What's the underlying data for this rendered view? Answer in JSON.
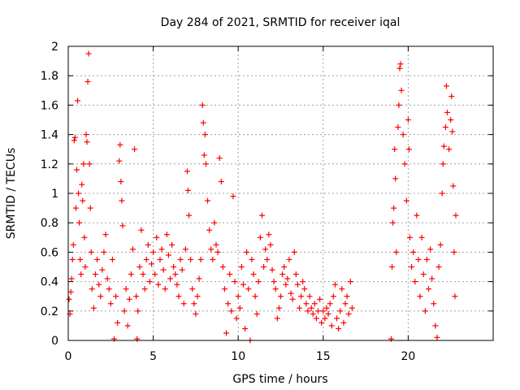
{
  "chart_data": {
    "type": "scatter",
    "title": "Day 284 of 2021, SRMTID for receiver iqal",
    "xlabel": "GPS time / hours",
    "ylabel": "SRMTID / TECUs",
    "xlim": [
      0,
      25
    ],
    "ylim": [
      0,
      2
    ],
    "x_ticks": [
      0,
      5,
      10,
      15,
      20
    ],
    "y_ticks": [
      0,
      0.2,
      0.4,
      0.6,
      0.8,
      1,
      1.2,
      1.4,
      1.6,
      1.8,
      2
    ],
    "x_tick_labels": [
      "0",
      "5",
      "10",
      "15",
      "20"
    ],
    "y_tick_labels": [
      "0",
      "0.2",
      "0.4",
      "0.6",
      "0.8",
      "1",
      "1.2",
      "1.4",
      "1.6",
      "1.8",
      "2"
    ],
    "grid": true,
    "marker": "+",
    "color": "#ff0000",
    "series": [
      {
        "name": "SRMTID",
        "points": [
          [
            0.05,
            0.28
          ],
          [
            0.1,
            0.18
          ],
          [
            0.15,
            0.33
          ],
          [
            0.2,
            0.42
          ],
          [
            0.25,
            0.55
          ],
          [
            0.3,
            0.65
          ],
          [
            0.35,
            1.36
          ],
          [
            0.4,
            1.38
          ],
          [
            0.45,
            0.9
          ],
          [
            0.5,
            1.16
          ],
          [
            0.55,
            1.63
          ],
          [
            0.6,
            1.0
          ],
          [
            0.65,
            0.8
          ],
          [
            0.7,
            0.55
          ],
          [
            0.75,
            0.45
          ],
          [
            0.8,
            1.06
          ],
          [
            0.85,
            0.95
          ],
          [
            0.9,
            1.2
          ],
          [
            0.95,
            0.7
          ],
          [
            1.0,
            0.5
          ],
          [
            1.05,
            1.4
          ],
          [
            1.1,
            1.35
          ],
          [
            1.15,
            1.76
          ],
          [
            1.2,
            1.95
          ],
          [
            1.25,
            1.2
          ],
          [
            1.3,
            0.9
          ],
          [
            1.35,
            0.6
          ],
          [
            1.4,
            0.35
          ],
          [
            1.5,
            0.22
          ],
          [
            1.6,
            0.45
          ],
          [
            1.7,
            0.55
          ],
          [
            1.8,
            0.38
          ],
          [
            1.9,
            0.3
          ],
          [
            2.0,
            0.48
          ],
          [
            2.1,
            0.6
          ],
          [
            2.2,
            0.72
          ],
          [
            2.3,
            0.42
          ],
          [
            2.4,
            0.35
          ],
          [
            2.5,
            0.25
          ],
          [
            2.6,
            0.55
          ],
          [
            2.7,
            0.01
          ],
          [
            2.8,
            0.3
          ],
          [
            2.9,
            0.12
          ],
          [
            3.0,
            1.22
          ],
          [
            3.05,
            1.33
          ],
          [
            3.1,
            1.08
          ],
          [
            3.15,
            0.95
          ],
          [
            3.2,
            0.78
          ],
          [
            3.3,
            0.2
          ],
          [
            3.4,
            0.35
          ],
          [
            3.5,
            0.1
          ],
          [
            3.6,
            0.28
          ],
          [
            3.7,
            0.45
          ],
          [
            3.8,
            0.62
          ],
          [
            3.9,
            1.3
          ],
          [
            4.0,
            0.3
          ],
          [
            4.05,
            0.01
          ],
          [
            4.1,
            0.2
          ],
          [
            4.2,
            0.5
          ],
          [
            4.3,
            0.75
          ],
          [
            4.4,
            0.45
          ],
          [
            4.5,
            0.35
          ],
          [
            4.6,
            0.55
          ],
          [
            4.7,
            0.65
          ],
          [
            4.8,
            0.4
          ],
          [
            4.9,
            0.52
          ],
          [
            5.0,
            0.6
          ],
          [
            5.1,
            0.45
          ],
          [
            5.2,
            0.7
          ],
          [
            5.3,
            0.38
          ],
          [
            5.4,
            0.55
          ],
          [
            5.5,
            0.62
          ],
          [
            5.6,
            0.48
          ],
          [
            5.7,
            0.35
          ],
          [
            5.8,
            0.72
          ],
          [
            5.9,
            0.58
          ],
          [
            6.0,
            0.42
          ],
          [
            6.1,
            0.65
          ],
          [
            6.2,
            0.5
          ],
          [
            6.3,
            0.45
          ],
          [
            6.4,
            0.38
          ],
          [
            6.5,
            0.3
          ],
          [
            6.6,
            0.55
          ],
          [
            6.7,
            0.48
          ],
          [
            6.8,
            0.25
          ],
          [
            6.9,
            0.62
          ],
          [
            7.0,
            1.15
          ],
          [
            7.05,
            1.02
          ],
          [
            7.1,
            0.85
          ],
          [
            7.2,
            0.55
          ],
          [
            7.3,
            0.35
          ],
          [
            7.4,
            0.25
          ],
          [
            7.5,
            0.18
          ],
          [
            7.6,
            0.3
          ],
          [
            7.7,
            0.42
          ],
          [
            7.8,
            0.55
          ],
          [
            7.9,
            1.6
          ],
          [
            7.95,
            1.48
          ],
          [
            8.0,
            1.26
          ],
          [
            8.05,
            1.4
          ],
          [
            8.1,
            1.2
          ],
          [
            8.2,
            0.95
          ],
          [
            8.3,
            0.75
          ],
          [
            8.4,
            0.62
          ],
          [
            8.5,
            0.55
          ],
          [
            8.6,
            0.8
          ],
          [
            8.7,
            0.65
          ],
          [
            8.8,
            0.6
          ],
          [
            8.9,
            1.24
          ],
          [
            9.0,
            1.08
          ],
          [
            9.1,
            0.5
          ],
          [
            9.2,
            0.35
          ],
          [
            9.3,
            0.05
          ],
          [
            9.4,
            0.25
          ],
          [
            9.5,
            0.45
          ],
          [
            9.6,
            0.2
          ],
          [
            9.7,
            0.98
          ],
          [
            9.8,
            0.4
          ],
          [
            9.9,
            0.15
          ],
          [
            10.0,
            0.3
          ],
          [
            10.1,
            0.22
          ],
          [
            10.2,
            0.5
          ],
          [
            10.3,
            0.38
          ],
          [
            10.4,
            0.08
          ],
          [
            10.5,
            0.6
          ],
          [
            10.6,
            0.35
          ],
          [
            10.7,
            0.0
          ],
          [
            10.8,
            0.55
          ],
          [
            10.9,
            0.45
          ],
          [
            11.0,
            0.3
          ],
          [
            11.1,
            0.18
          ],
          [
            11.2,
            0.4
          ],
          [
            11.3,
            0.7
          ],
          [
            11.4,
            0.85
          ],
          [
            11.5,
            0.5
          ],
          [
            11.6,
            0.62
          ],
          [
            11.7,
            0.55
          ],
          [
            11.8,
            0.72
          ],
          [
            11.9,
            0.65
          ],
          [
            12.0,
            0.48
          ],
          [
            12.1,
            0.4
          ],
          [
            12.2,
            0.35
          ],
          [
            12.3,
            0.15
          ],
          [
            12.4,
            0.22
          ],
          [
            12.5,
            0.3
          ],
          [
            12.6,
            0.45
          ],
          [
            12.7,
            0.5
          ],
          [
            12.8,
            0.38
          ],
          [
            12.9,
            0.42
          ],
          [
            13.0,
            0.55
          ],
          [
            13.1,
            0.32
          ],
          [
            13.2,
            0.28
          ],
          [
            13.3,
            0.6
          ],
          [
            13.4,
            0.45
          ],
          [
            13.5,
            0.38
          ],
          [
            13.6,
            0.22
          ],
          [
            13.7,
            0.3
          ],
          [
            13.8,
            0.4
          ],
          [
            13.9,
            0.35
          ],
          [
            14.0,
            0.25
          ],
          [
            14.1,
            0.2
          ],
          [
            14.2,
            0.3
          ],
          [
            14.3,
            0.22
          ],
          [
            14.4,
            0.18
          ],
          [
            14.5,
            0.25
          ],
          [
            14.6,
            0.15
          ],
          [
            14.7,
            0.2
          ],
          [
            14.8,
            0.28
          ],
          [
            14.9,
            0.12
          ],
          [
            15.0,
            0.2
          ],
          [
            15.1,
            0.15
          ],
          [
            15.2,
            0.22
          ],
          [
            15.3,
            0.18
          ],
          [
            15.4,
            0.25
          ],
          [
            15.5,
            0.1
          ],
          [
            15.6,
            0.3
          ],
          [
            15.7,
            0.38
          ],
          [
            15.8,
            0.15
          ],
          [
            15.9,
            0.08
          ],
          [
            16.0,
            0.2
          ],
          [
            16.1,
            0.35
          ],
          [
            16.2,
            0.12
          ],
          [
            16.3,
            0.25
          ],
          [
            16.4,
            0.3
          ],
          [
            16.5,
            0.18
          ],
          [
            16.6,
            0.4
          ],
          [
            16.7,
            0.22
          ],
          [
            19.0,
            0.01
          ],
          [
            19.05,
            0.5
          ],
          [
            19.1,
            0.8
          ],
          [
            19.15,
            0.9
          ],
          [
            19.2,
            1.3
          ],
          [
            19.25,
            1.1
          ],
          [
            19.3,
            0.6
          ],
          [
            19.4,
            1.45
          ],
          [
            19.45,
            1.6
          ],
          [
            19.5,
            1.85
          ],
          [
            19.55,
            1.88
          ],
          [
            19.6,
            1.7
          ],
          [
            19.7,
            1.4
          ],
          [
            19.8,
            1.2
          ],
          [
            19.9,
            0.95
          ],
          [
            20.0,
            1.5
          ],
          [
            20.05,
            1.3
          ],
          [
            20.1,
            0.7
          ],
          [
            20.2,
            0.5
          ],
          [
            20.3,
            0.6
          ],
          [
            20.4,
            0.4
          ],
          [
            20.5,
            0.85
          ],
          [
            20.6,
            0.55
          ],
          [
            20.7,
            0.3
          ],
          [
            20.8,
            0.7
          ],
          [
            20.9,
            0.45
          ],
          [
            21.0,
            0.2
          ],
          [
            21.1,
            0.55
          ],
          [
            21.2,
            0.35
          ],
          [
            21.3,
            0.62
          ],
          [
            21.4,
            0.42
          ],
          [
            21.5,
            0.25
          ],
          [
            21.6,
            0.1
          ],
          [
            21.7,
            0.02
          ],
          [
            21.8,
            0.5
          ],
          [
            21.9,
            0.65
          ],
          [
            22.0,
            1.0
          ],
          [
            22.05,
            1.2
          ],
          [
            22.1,
            1.32
          ],
          [
            22.2,
            1.45
          ],
          [
            22.25,
            1.73
          ],
          [
            22.3,
            1.55
          ],
          [
            22.4,
            1.3
          ],
          [
            22.5,
            1.5
          ],
          [
            22.55,
            1.66
          ],
          [
            22.6,
            1.42
          ],
          [
            22.65,
            1.05
          ],
          [
            22.7,
            0.6
          ],
          [
            22.75,
            0.3
          ],
          [
            22.8,
            0.85
          ]
        ]
      }
    ]
  }
}
